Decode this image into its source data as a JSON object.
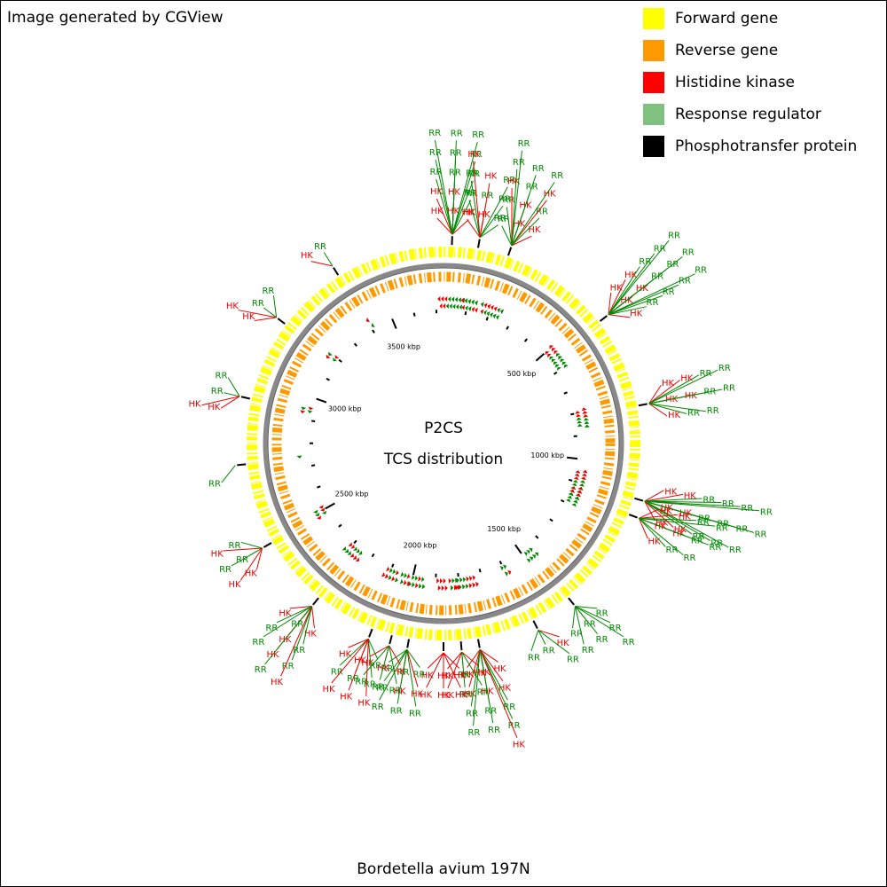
{
  "title": "Image generated by CGView",
  "caption": "Bordetella avium 197N",
  "chart_data": {
    "type": "circular-genome",
    "center_title": "P2CS",
    "center_subtitle": "TCS distribution",
    "legend": [
      {
        "name": "Forward gene",
        "color": "#ffff00"
      },
      {
        "name": "Reverse gene",
        "color": "#ff9900"
      },
      {
        "name": "Histidine kinase",
        "color": "#ff0000"
      },
      {
        "name": "Response regulator",
        "color": "#80c080"
      },
      {
        "name": "Phosphotransfer protein",
        "color": "#000000"
      }
    ],
    "label_colors": {
      "HK": "#ee0000",
      "RR": "#008800"
    },
    "xlim": [
      0,
      3732
    ],
    "xticks": [
      {
        "value": 500,
        "label": "500 kbp"
      },
      {
        "value": 1000,
        "label": "1000 kbp"
      },
      {
        "value": 1500,
        "label": "1500 kbp"
      },
      {
        "value": 2000,
        "label": "2000 kbp"
      },
      {
        "value": 2500,
        "label": "2500 kbp"
      },
      {
        "value": 3000,
        "label": "3000 kbp"
      },
      {
        "value": 3500,
        "label": "3500 kbp"
      }
    ],
    "minor_xticks": [
      100,
      200,
      300,
      400,
      600,
      700,
      800,
      900,
      1100,
      1200,
      1300,
      1400,
      1600,
      1700,
      1800,
      1900,
      2100,
      2200,
      2300,
      2400,
      2600,
      2700,
      2800,
      2900,
      3100,
      3200,
      3300,
      3400,
      3600,
      3700
    ],
    "clusters": [
      {
        "position": 25,
        "labels": [
          "HK",
          "HK",
          "HK",
          "HK",
          "HK",
          "RR",
          "RR",
          "RR",
          "RR",
          "RR",
          "RR",
          "RR",
          "RR",
          "RR",
          "RR"
        ]
      },
      {
        "position": 104,
        "labels": [
          "HK",
          "HK",
          "RR",
          "RR",
          "RR",
          "RR",
          "RR",
          "HK",
          "RR",
          "HK"
        ]
      },
      {
        "position": 197,
        "labels": [
          "RR",
          "HK",
          "HK",
          "RR",
          "HK",
          "RR",
          "HK",
          "RR",
          "HK",
          "RR",
          "RR",
          "RR",
          "RR"
        ]
      },
      {
        "position": 539,
        "labels": [
          "HK",
          "HK",
          "HK",
          "HK",
          "HK",
          "RR",
          "RR",
          "RR",
          "RR",
          "RR",
          "RR",
          "RR",
          "RR",
          "RR",
          "RR"
        ]
      },
      {
        "position": 819,
        "labels": [
          "HK",
          "HK",
          "HK",
          "HK",
          "HK",
          "RR",
          "RR",
          "RR",
          "RR",
          "RR",
          "RR"
        ]
      },
      {
        "position": 1099,
        "labels": [
          "HK",
          "HK",
          "HK",
          "HK",
          "HK",
          "HK",
          "RR",
          "RR",
          "RR",
          "RR",
          "RR",
          "RR",
          "RR",
          "RR",
          "RR",
          "RR",
          "RR"
        ]
      },
      {
        "position": 1150,
        "labels": [
          "HK",
          "HK",
          "HK",
          "HK",
          "HK",
          "RR",
          "RR",
          "RR",
          "RR",
          "RR",
          "RR"
        ]
      },
      {
        "position": 1462,
        "labels": [
          "RR",
          "RR",
          "RR",
          "RR",
          "RR",
          "RR",
          "RR"
        ]
      },
      {
        "position": 1587,
        "labels": [
          "HK",
          "RR",
          "RR",
          "RR"
        ]
      },
      {
        "position": 1762,
        "labels": [
          "HK",
          "HK",
          "HK",
          "HK",
          "HK",
          "HK",
          "RR",
          "RR",
          "RR",
          "RR",
          "RR",
          "RR",
          "HK"
        ]
      },
      {
        "position": 1814,
        "labels": [
          "HK",
          "RR",
          "HK",
          "RR",
          "RR",
          "HK"
        ]
      },
      {
        "position": 1866,
        "labels": [
          "HK",
          "HK",
          "HK",
          "HK",
          "HK",
          "HK"
        ]
      },
      {
        "position": 1970,
        "labels": [
          "RR",
          "RR",
          "RR",
          "HK",
          "HK",
          "RR",
          "RR",
          "RR",
          "RR"
        ]
      },
      {
        "position": 2022,
        "labels": [
          "HK",
          "HK",
          "HK",
          "RR",
          "RR",
          "RR"
        ]
      },
      {
        "position": 2084,
        "labels": [
          "RR",
          "HK",
          "HK",
          "RR",
          "RR",
          "RR",
          "HK",
          "HK",
          "HK"
        ]
      },
      {
        "position": 2270,
        "labels": [
          "HK",
          "RR",
          "HK",
          "RR",
          "HK",
          "RR",
          "RR",
          "HK",
          "RR",
          "HK",
          "RR"
        ]
      },
      {
        "position": 2488,
        "labels": [
          "HK",
          "RR",
          "RR",
          "HK",
          "RR",
          "HK"
        ]
      },
      {
        "position": 2737,
        "labels": [
          "RR"
        ]
      },
      {
        "position": 2934,
        "labels": [
          "HK",
          "RR",
          "RR",
          "HK"
        ]
      },
      {
        "position": 3183,
        "labels": [
          "HK",
          "RR",
          "RR",
          "HK"
        ]
      },
      {
        "position": 3400,
        "labels": [
          "HK",
          "RR"
        ]
      }
    ]
  }
}
